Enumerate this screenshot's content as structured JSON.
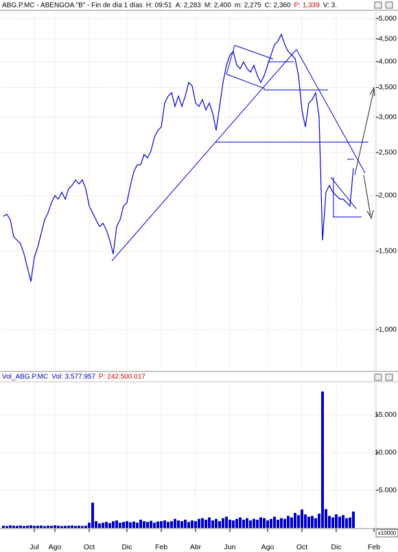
{
  "chart_data": [
    {
      "type": "line",
      "title": "ABG.P.MC - ABENGOA \"B\" - Fin de día 1 días",
      "stats": [
        "H: 09:51",
        "A: 2,283",
        "M: 2,400",
        "m: 2,275",
        "C: 2,360"
      ],
      "stats_red": [
        "P: 1,339"
      ],
      "stats_tail": [
        "V: 3."
      ],
      "color": "#0000cc",
      "log_scale": true,
      "grid": true,
      "ylim": [
        808,
        5218
      ],
      "yticks": [
        {
          "value": 1000,
          "label": "1,000"
        },
        {
          "value": 1500,
          "label": "1,500"
        },
        {
          "value": 2000,
          "label": "2,000"
        },
        {
          "value": 2500,
          "label": "2,500"
        },
        {
          "value": 3000,
          "label": "3,000"
        },
        {
          "value": 3500,
          "label": "3,500"
        },
        {
          "value": 4000,
          "label": "4,000"
        },
        {
          "value": 4500,
          "label": "4,500"
        },
        {
          "value": 5000,
          "label": "5,000"
        }
      ],
      "values": [
        1797,
        1816,
        1765,
        1615,
        1587,
        1559,
        1478,
        1377,
        1282,
        1452,
        1532,
        1644,
        1765,
        1829,
        1929,
        2000,
        1964,
        2035,
        1964,
        2072,
        2109,
        2169,
        2124,
        2169,
        2072,
        1895,
        1829,
        1765,
        1704,
        1734,
        1674,
        1587,
        1478,
        1704,
        1765,
        1895,
        1929,
        2109,
        2264,
        2346,
        2346,
        2474,
        2430,
        2519,
        2704,
        2802,
        2852,
        3229,
        3346,
        3407,
        3173,
        3346,
        3173,
        3346,
        3592,
        3529,
        3229,
        3173,
        3287,
        3116,
        3229,
        3062,
        2802,
        3173,
        3592,
        3926,
        4141,
        4216,
        3926,
        3857,
        3996,
        3857,
        3789,
        3926,
        3722,
        3592,
        3722,
        3926,
        4141,
        4368,
        4446,
        4608,
        4368,
        4216,
        4141,
        4068,
        3722,
        3116,
        2852,
        3229,
        3287,
        3407,
        3008,
        1587,
        2035,
        2109,
        2035,
        2000,
        1964,
        1964,
        1929,
        1895,
        2305,
        null,
        null,
        null,
        null,
        null,
        null
      ]
    },
    {
      "type": "bar",
      "title": "Vol_ABG.P.MC",
      "stats": [
        "Vol: 3.577.957"
      ],
      "stats_red": [
        "P: 242.500.017"
      ],
      "axis_multiplier": "x10000",
      "color": "#0000cc",
      "grid": true,
      "ylim": [
        0,
        19400
      ],
      "yticks": [
        {
          "value": 5000,
          "label": "5.000"
        },
        {
          "value": 10000,
          "label": "10.000"
        },
        {
          "value": 15000,
          "label": "15.000"
        }
      ],
      "categories": [
        null,
        null,
        null,
        null,
        null,
        null,
        null,
        null,
        null,
        "Jul",
        null,
        null,
        null,
        null,
        null,
        "Ago",
        null,
        null,
        null,
        null,
        null,
        null,
        null,
        null,
        null,
        "Oct",
        null,
        null,
        null,
        null,
        null,
        null,
        null,
        null,
        null,
        null,
        "Dic",
        null,
        null,
        null,
        null,
        null,
        null,
        null,
        null,
        null,
        "Feb",
        null,
        null,
        null,
        null,
        null,
        null,
        null,
        null,
        null,
        "Abr",
        null,
        null,
        null,
        null,
        null,
        null,
        null,
        null,
        null,
        "Jun",
        null,
        null,
        null,
        null,
        null,
        null,
        null,
        null,
        null,
        null,
        "Ago",
        null,
        null,
        null,
        null,
        null,
        null,
        null,
        null,
        null,
        "Oct",
        null,
        null,
        null,
        null,
        null,
        null,
        null,
        null,
        null,
        "Dic",
        null,
        null,
        null,
        null,
        null,
        null,
        null,
        null,
        null,
        null,
        "Feb"
      ],
      "values": [
        300,
        250,
        350,
        300,
        280,
        320,
        260,
        300,
        350,
        280,
        300,
        320,
        250,
        300,
        280,
        350,
        300,
        260,
        280,
        300,
        320,
        280,
        300,
        260,
        300,
        700,
        3360,
        900,
        600,
        700,
        800,
        650,
        900,
        1000,
        700,
        800,
        900,
        750,
        850,
        700,
        1100,
        900,
        800,
        950,
        700,
        850,
        900,
        1000,
        800,
        900,
        1200,
        1000,
        900,
        1100,
        800,
        1000,
        900,
        1200,
        1300,
        1100,
        1400,
        1000,
        1200,
        900,
        1300,
        1500,
        1100,
        1000,
        1200,
        1400,
        1100,
        1300,
        1000,
        1200,
        1100,
        1400,
        1300,
        1000,
        1200,
        1500,
        1100,
        1300,
        1200,
        1600,
        1400,
        2000,
        1700,
        2450,
        1800,
        1500,
        1600,
        1300,
        1900,
        18100,
        2500,
        1600,
        1400,
        1800,
        1500,
        1700,
        1300,
        1400,
        2180,
        null,
        null,
        null,
        null,
        null,
        null
      ]
    }
  ]
}
